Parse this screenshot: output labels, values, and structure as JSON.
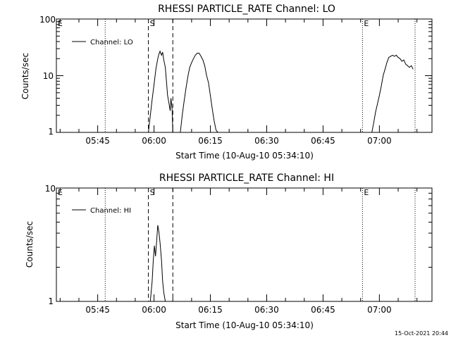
{
  "footer": {
    "timestamp": "15-Oct-2021 20:44"
  },
  "chart_data": [
    {
      "type": "line",
      "title": "RHESSI PARTICLE_RATE Channel: LO",
      "xlabel": "Start Time (10-Aug-10 05:34:10)",
      "ylabel": "Counts/sec",
      "y_scale": "log",
      "ylim": [
        1,
        100
      ],
      "y_ticks": [
        1,
        10,
        100
      ],
      "y_tick_labels": [
        "1",
        "10",
        "100"
      ],
      "xlim_minutes": [
        0,
        100
      ],
      "x_ticks": [
        11,
        26,
        41,
        56,
        71,
        86
      ],
      "x_tick_labels": [
        "05:45",
        "06:00",
        "06:15",
        "06:30",
        "06:45",
        "07:00"
      ],
      "legend": "Channel: LO",
      "legend_position": "top-left",
      "dotted_lines": [
        13,
        81.5,
        95.5
      ],
      "dashed_lines": [
        24.5,
        31
      ],
      "markers": [
        {
          "label": "E",
          "x": 0
        },
        {
          "label": "S",
          "x": 24.5
        },
        {
          "label": "E",
          "x": 81.5
        }
      ],
      "series": [
        {
          "segments": [
            {
              "x": [
                24.5,
                25,
                25.5,
                26,
                26.5,
                27,
                27.3,
                27.6,
                28,
                28.3,
                28.6,
                29,
                29.3,
                29.6,
                30,
                30.3,
                30.5,
                30.8,
                31
              ],
              "y": [
                1,
                2.0,
                3.8,
                7,
                13,
                20,
                24,
                27,
                23,
                26,
                19,
                14,
                8,
                4.5,
                3.2,
                2.4,
                4,
                2.6,
                1
              ]
            },
            {
              "x": [
                33,
                33.5,
                34,
                34.5,
                35,
                35.5,
                36,
                36.5,
                37,
                37.5,
                38,
                38.5,
                39,
                39.5,
                40,
                40.5,
                41,
                41.5,
                42,
                42.5,
                43
              ],
              "y": [
                1,
                2.0,
                3.5,
                6,
                9.5,
                14,
                17,
                20,
                23,
                25,
                25,
                22,
                19,
                15,
                10,
                7.5,
                4.5,
                2.6,
                1.6,
                1.1,
                1
              ]
            },
            {
              "x": [
                84,
                84.5,
                85,
                85.5,
                86,
                86.5,
                87,
                87.5,
                88,
                88.5,
                89,
                89.5,
                90,
                90.5,
                91,
                91.5,
                92,
                92.5,
                93,
                93.5,
                94,
                94.5,
                95
              ],
              "y": [
                1,
                1.5,
                2.3,
                3.2,
                4.5,
                6.5,
                10,
                13,
                17,
                21,
                22,
                23,
                22,
                23,
                21,
                20,
                18,
                19,
                16,
                15,
                14,
                15,
                13
              ]
            }
          ]
        }
      ]
    },
    {
      "type": "line",
      "title": "RHESSI PARTICLE_RATE Channel: HI",
      "xlabel": "Start Time (10-Aug-10 05:34:10)",
      "ylabel": "Counts/sec",
      "y_scale": "log",
      "ylim": [
        1,
        10
      ],
      "y_ticks": [
        1,
        10
      ],
      "y_tick_labels": [
        "1",
        "10"
      ],
      "xlim_minutes": [
        0,
        100
      ],
      "x_ticks": [
        11,
        26,
        41,
        56,
        71,
        86
      ],
      "x_tick_labels": [
        "05:45",
        "06:00",
        "06:15",
        "06:30",
        "06:45",
        "07:00"
      ],
      "legend": "Channel: HI",
      "legend_position": "top-left",
      "dotted_lines": [
        13,
        81.5,
        95.5
      ],
      "dashed_lines": [
        24.5,
        31
      ],
      "markers": [
        {
          "label": "E",
          "x": 0
        },
        {
          "label": "S",
          "x": 24.5
        },
        {
          "label": "E",
          "x": 81.5
        }
      ],
      "series": [
        {
          "segments": [
            {
              "x": [
                25,
                25.5,
                25.8,
                26.1,
                26.4,
                26.7,
                27,
                27.3,
                27.6,
                28,
                28.3,
                28.6,
                29
              ],
              "y": [
                1,
                1.5,
                2.3,
                3.1,
                2.5,
                3.4,
                4.7,
                4.1,
                3.3,
                2.3,
                1.5,
                1.2,
                1
              ]
            }
          ]
        }
      ]
    }
  ]
}
